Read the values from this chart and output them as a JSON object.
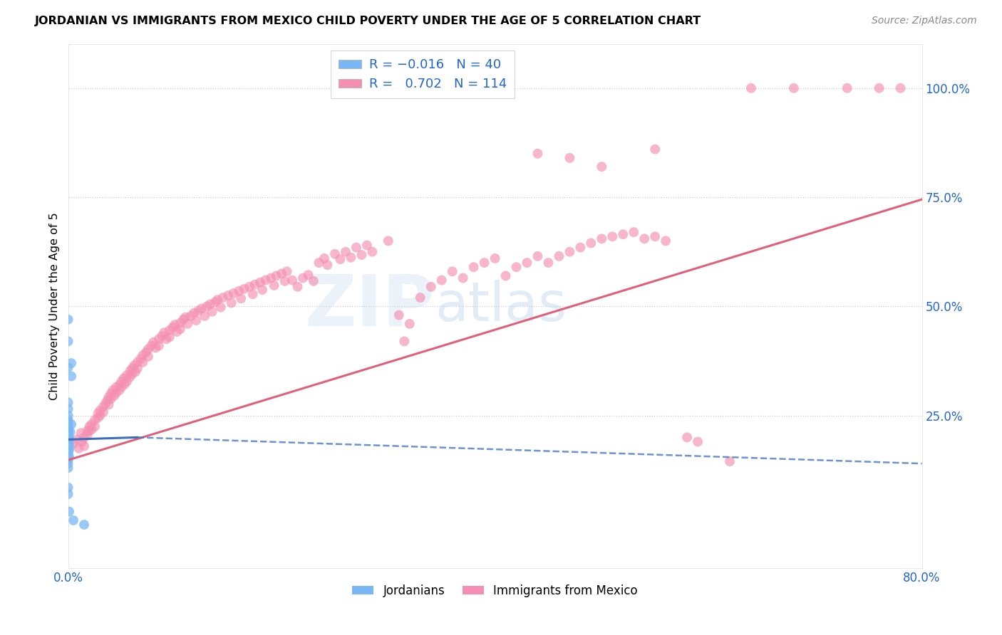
{
  "title": "JORDANIAN VS IMMIGRANTS FROM MEXICO CHILD POVERTY UNDER THE AGE OF 5 CORRELATION CHART",
  "source": "Source: ZipAtlas.com",
  "ylabel": "Child Poverty Under the Age of 5",
  "ytick_labels": [
    "100.0%",
    "75.0%",
    "50.0%",
    "25.0%"
  ],
  "ytick_values": [
    1.0,
    0.75,
    0.5,
    0.25
  ],
  "xlim": [
    0.0,
    0.8
  ],
  "ylim": [
    -0.1,
    1.1
  ],
  "color_jordanian": "#7ab8f5",
  "color_mexico": "#f48fb1",
  "color_line_jordanian": "#3a6fbf",
  "color_line_mexico": "#e0607a",
  "watermark_zip": "ZIP",
  "watermark_atlas": "atlas",
  "jordanian_points": [
    [
      0.0,
      0.47
    ],
    [
      0.0,
      0.42
    ],
    [
      0.003,
      0.37
    ],
    [
      0.0,
      0.36
    ],
    [
      0.003,
      0.34
    ],
    [
      0.0,
      0.28
    ],
    [
      0.0,
      0.265
    ],
    [
      0.0,
      0.25
    ],
    [
      0.0,
      0.24
    ],
    [
      0.0,
      0.235
    ],
    [
      0.003,
      0.23
    ],
    [
      0.0,
      0.225
    ],
    [
      0.0,
      0.22
    ],
    [
      0.0,
      0.218
    ],
    [
      0.0,
      0.215
    ],
    [
      0.002,
      0.212
    ],
    [
      0.0,
      0.21
    ],
    [
      0.0,
      0.205
    ],
    [
      0.0,
      0.2
    ],
    [
      0.001,
      0.198
    ],
    [
      0.0,
      0.195
    ],
    [
      0.0,
      0.192
    ],
    [
      0.0,
      0.188
    ],
    [
      0.0,
      0.185
    ],
    [
      0.001,
      0.182
    ],
    [
      0.0,
      0.178
    ],
    [
      0.0,
      0.175
    ],
    [
      0.001,
      0.172
    ],
    [
      0.0,
      0.168
    ],
    [
      0.0,
      0.165
    ],
    [
      0.0,
      0.16
    ],
    [
      0.001,
      0.155
    ],
    [
      0.0,
      0.148
    ],
    [
      0.0,
      0.14
    ],
    [
      0.0,
      0.13
    ],
    [
      0.0,
      0.085
    ],
    [
      0.0,
      0.07
    ],
    [
      0.001,
      0.03
    ],
    [
      0.005,
      0.01
    ],
    [
      0.015,
      0.0
    ]
  ],
  "mexico_points": [
    [
      0.005,
      0.185
    ],
    [
      0.008,
      0.195
    ],
    [
      0.01,
      0.175
    ],
    [
      0.012,
      0.21
    ],
    [
      0.013,
      0.19
    ],
    [
      0.015,
      0.2
    ],
    [
      0.015,
      0.18
    ],
    [
      0.018,
      0.215
    ],
    [
      0.018,
      0.205
    ],
    [
      0.02,
      0.225
    ],
    [
      0.02,
      0.215
    ],
    [
      0.022,
      0.23
    ],
    [
      0.022,
      0.218
    ],
    [
      0.025,
      0.24
    ],
    [
      0.025,
      0.225
    ],
    [
      0.028,
      0.255
    ],
    [
      0.028,
      0.245
    ],
    [
      0.03,
      0.262
    ],
    [
      0.03,
      0.25
    ],
    [
      0.033,
      0.27
    ],
    [
      0.033,
      0.258
    ],
    [
      0.035,
      0.278
    ],
    [
      0.037,
      0.285
    ],
    [
      0.038,
      0.292
    ],
    [
      0.038,
      0.275
    ],
    [
      0.04,
      0.3
    ],
    [
      0.04,
      0.288
    ],
    [
      0.042,
      0.308
    ],
    [
      0.043,
      0.295
    ],
    [
      0.045,
      0.315
    ],
    [
      0.045,
      0.302
    ],
    [
      0.048,
      0.32
    ],
    [
      0.048,
      0.308
    ],
    [
      0.05,
      0.328
    ],
    [
      0.05,
      0.315
    ],
    [
      0.052,
      0.335
    ],
    [
      0.053,
      0.322
    ],
    [
      0.055,
      0.342
    ],
    [
      0.055,
      0.328
    ],
    [
      0.058,
      0.352
    ],
    [
      0.058,
      0.338
    ],
    [
      0.06,
      0.358
    ],
    [
      0.06,
      0.345
    ],
    [
      0.062,
      0.365
    ],
    [
      0.063,
      0.35
    ],
    [
      0.065,
      0.372
    ],
    [
      0.065,
      0.358
    ],
    [
      0.068,
      0.38
    ],
    [
      0.07,
      0.388
    ],
    [
      0.07,
      0.372
    ],
    [
      0.073,
      0.395
    ],
    [
      0.075,
      0.402
    ],
    [
      0.075,
      0.385
    ],
    [
      0.078,
      0.41
    ],
    [
      0.08,
      0.418
    ],
    [
      0.082,
      0.405
    ],
    [
      0.085,
      0.425
    ],
    [
      0.085,
      0.41
    ],
    [
      0.088,
      0.432
    ],
    [
      0.09,
      0.44
    ],
    [
      0.092,
      0.425
    ],
    [
      0.095,
      0.445
    ],
    [
      0.095,
      0.43
    ],
    [
      0.098,
      0.452
    ],
    [
      0.1,
      0.458
    ],
    [
      0.102,
      0.442
    ],
    [
      0.105,
      0.462
    ],
    [
      0.105,
      0.448
    ],
    [
      0.108,
      0.47
    ],
    [
      0.11,
      0.475
    ],
    [
      0.112,
      0.46
    ],
    [
      0.115,
      0.478
    ],
    [
      0.118,
      0.485
    ],
    [
      0.12,
      0.468
    ],
    [
      0.122,
      0.49
    ],
    [
      0.125,
      0.495
    ],
    [
      0.128,
      0.478
    ],
    [
      0.13,
      0.5
    ],
    [
      0.133,
      0.505
    ],
    [
      0.135,
      0.488
    ],
    [
      0.138,
      0.51
    ],
    [
      0.14,
      0.515
    ],
    [
      0.143,
      0.498
    ],
    [
      0.145,
      0.52
    ],
    [
      0.15,
      0.525
    ],
    [
      0.153,
      0.508
    ],
    [
      0.155,
      0.53
    ],
    [
      0.16,
      0.535
    ],
    [
      0.162,
      0.518
    ],
    [
      0.165,
      0.54
    ],
    [
      0.17,
      0.545
    ],
    [
      0.173,
      0.528
    ],
    [
      0.175,
      0.55
    ],
    [
      0.18,
      0.555
    ],
    [
      0.182,
      0.538
    ],
    [
      0.185,
      0.56
    ],
    [
      0.19,
      0.565
    ],
    [
      0.193,
      0.548
    ],
    [
      0.195,
      0.57
    ],
    [
      0.2,
      0.575
    ],
    [
      0.203,
      0.558
    ],
    [
      0.205,
      0.58
    ],
    [
      0.21,
      0.56
    ],
    [
      0.215,
      0.545
    ],
    [
      0.22,
      0.565
    ],
    [
      0.225,
      0.572
    ],
    [
      0.23,
      0.558
    ],
    [
      0.235,
      0.6
    ],
    [
      0.24,
      0.61
    ],
    [
      0.243,
      0.595
    ],
    [
      0.25,
      0.62
    ],
    [
      0.255,
      0.608
    ],
    [
      0.26,
      0.625
    ],
    [
      0.265,
      0.612
    ],
    [
      0.27,
      0.635
    ],
    [
      0.275,
      0.618
    ],
    [
      0.28,
      0.64
    ],
    [
      0.285,
      0.625
    ],
    [
      0.3,
      0.65
    ],
    [
      0.31,
      0.48
    ],
    [
      0.315,
      0.42
    ],
    [
      0.32,
      0.46
    ],
    [
      0.33,
      0.52
    ],
    [
      0.34,
      0.545
    ],
    [
      0.35,
      0.56
    ],
    [
      0.36,
      0.58
    ],
    [
      0.37,
      0.565
    ],
    [
      0.38,
      0.59
    ],
    [
      0.39,
      0.6
    ],
    [
      0.4,
      0.61
    ],
    [
      0.41,
      0.57
    ],
    [
      0.42,
      0.59
    ],
    [
      0.43,
      0.6
    ],
    [
      0.44,
      0.615
    ],
    [
      0.45,
      0.6
    ],
    [
      0.46,
      0.615
    ],
    [
      0.47,
      0.625
    ],
    [
      0.48,
      0.635
    ],
    [
      0.49,
      0.645
    ],
    [
      0.5,
      0.655
    ],
    [
      0.51,
      0.66
    ],
    [
      0.52,
      0.665
    ],
    [
      0.53,
      0.67
    ],
    [
      0.54,
      0.655
    ],
    [
      0.55,
      0.66
    ],
    [
      0.56,
      0.65
    ],
    [
      0.58,
      0.2
    ],
    [
      0.59,
      0.19
    ],
    [
      0.62,
      0.145
    ],
    [
      0.64,
      1.0
    ],
    [
      0.68,
      1.0
    ],
    [
      0.73,
      1.0
    ],
    [
      0.76,
      1.0
    ],
    [
      0.78,
      1.0
    ],
    [
      0.5,
      0.82
    ],
    [
      0.47,
      0.84
    ],
    [
      0.44,
      0.85
    ],
    [
      0.55,
      0.86
    ]
  ],
  "jord_line_solid": {
    "x0": 0.0,
    "x1": 0.065,
    "y0": 0.195,
    "y1": 0.2
  },
  "jord_line_dashed": {
    "x0": 0.065,
    "x1": 0.8,
    "y0": 0.2,
    "y1": 0.14
  },
  "mex_line": {
    "x0": 0.0,
    "x1": 0.8,
    "y0": 0.148,
    "y1": 0.745
  }
}
